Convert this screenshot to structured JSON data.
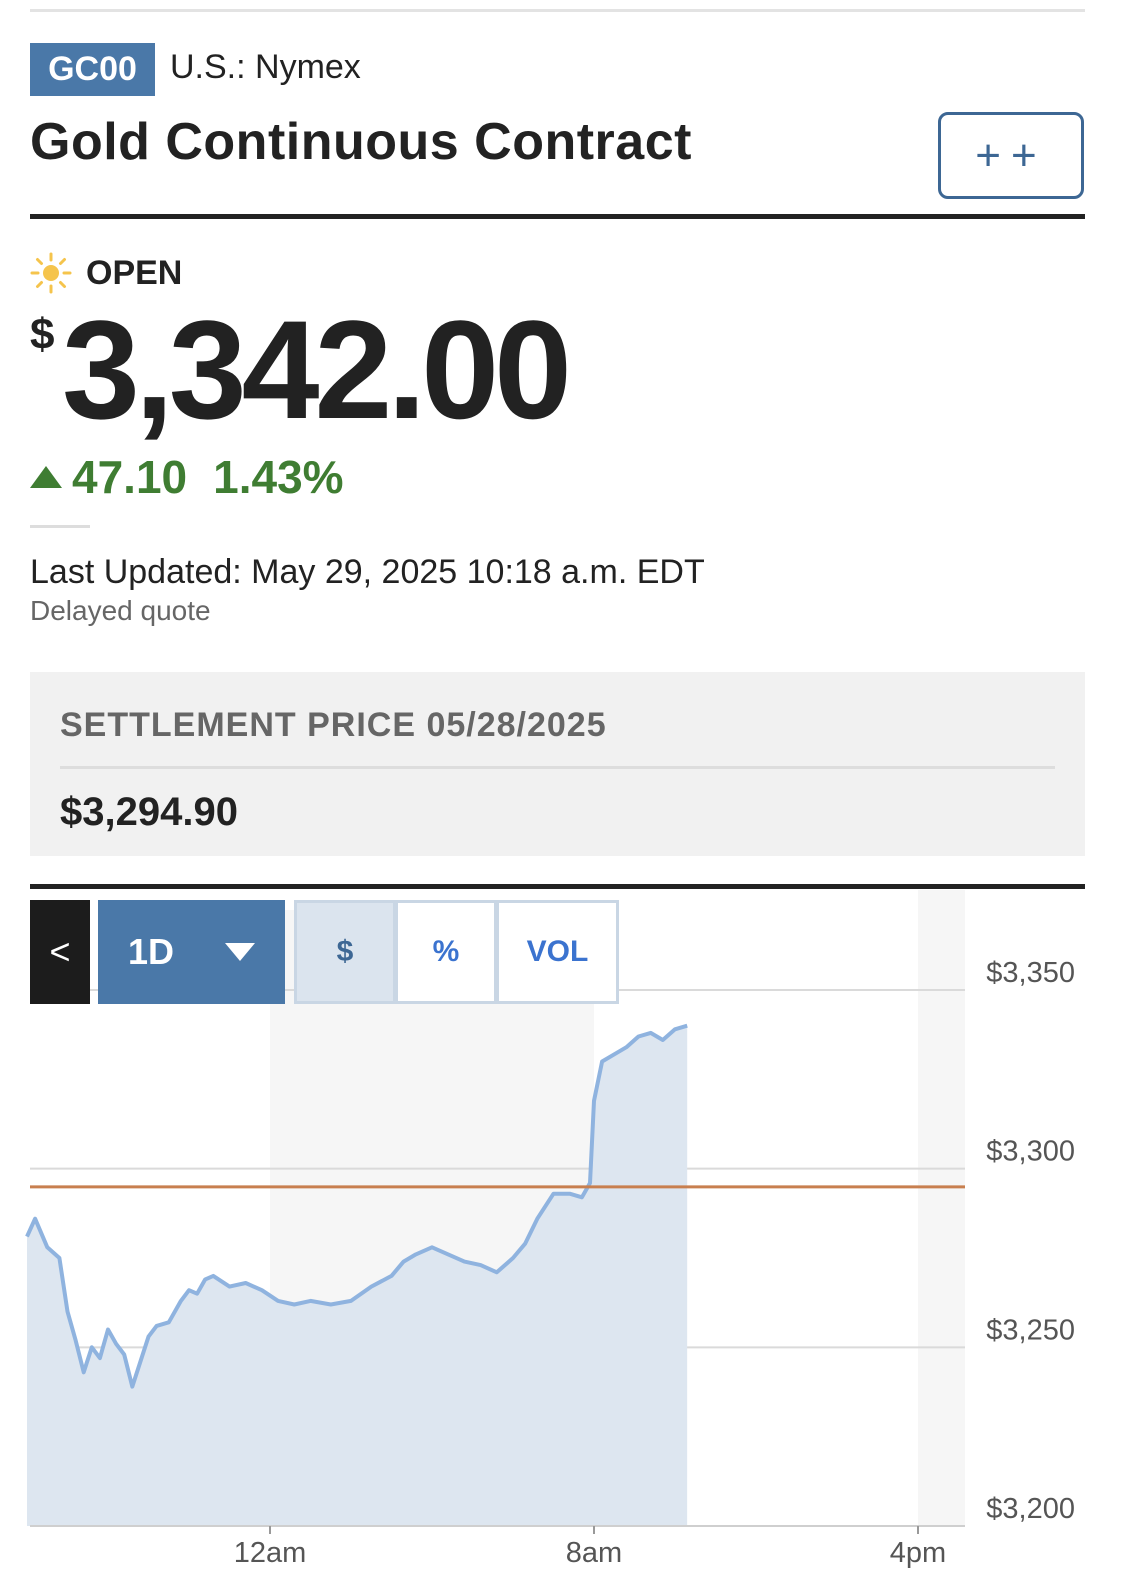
{
  "header": {
    "ticker": "GC00",
    "exchange": "U.S.: Nymex",
    "title": "Gold Continuous Contract",
    "watch_label": "++"
  },
  "quote": {
    "status": "OPEN",
    "currency_symbol": "$",
    "price": "3,342.00",
    "change": "47.10",
    "change_percent": "1.43%",
    "direction": "up",
    "last_updated": "Last Updated: May 29, 2025 10:18 a.m. EDT",
    "delayed_note": "Delayed quote"
  },
  "settlement": {
    "label": "SETTLEMENT PRICE 05/28/2025",
    "value": "$3,294.90"
  },
  "chart_controls": {
    "back_label": "<",
    "range_label": "1D",
    "modes": [
      {
        "label": "$",
        "active": true
      },
      {
        "label": "%",
        "active": false
      },
      {
        "label": "VOL",
        "active": false
      }
    ]
  },
  "colors": {
    "accent": "#4a78a8",
    "up": "#3f7d32",
    "line": "#8fb3df",
    "settlement_line": "#c87f4f"
  },
  "chart_data": {
    "type": "area",
    "title": "",
    "xlabel": "",
    "ylabel": "",
    "x_ticks": [
      "12am",
      "8am",
      "4pm"
    ],
    "y_ticks": [
      "$3,350",
      "$3,300",
      "$3,250",
      "$3,200"
    ],
    "ylim": [
      3200,
      3350
    ],
    "reference_line": {
      "value": 3294.9
    },
    "series": [
      {
        "values": [
          [
            -6.0,
            3281
          ],
          [
            -5.8,
            3286
          ],
          [
            -5.5,
            3278
          ],
          [
            -5.2,
            3275
          ],
          [
            -5.0,
            3260
          ],
          [
            -4.8,
            3252
          ],
          [
            -4.6,
            3243
          ],
          [
            -4.4,
            3250
          ],
          [
            -4.2,
            3247
          ],
          [
            -4.0,
            3255
          ],
          [
            -3.8,
            3251
          ],
          [
            -3.6,
            3248
          ],
          [
            -3.4,
            3239
          ],
          [
            -3.2,
            3246
          ],
          [
            -3.0,
            3253
          ],
          [
            -2.8,
            3256
          ],
          [
            -2.5,
            3257
          ],
          [
            -2.2,
            3263
          ],
          [
            -2.0,
            3266
          ],
          [
            -1.8,
            3265
          ],
          [
            -1.6,
            3269
          ],
          [
            -1.4,
            3270
          ],
          [
            -1.0,
            3267
          ],
          [
            -0.6,
            3268
          ],
          [
            -0.2,
            3266
          ],
          [
            0.2,
            3263
          ],
          [
            0.6,
            3262
          ],
          [
            1.0,
            3263
          ],
          [
            1.5,
            3262
          ],
          [
            2.0,
            3263
          ],
          [
            2.5,
            3267
          ],
          [
            3.0,
            3270
          ],
          [
            3.3,
            3274
          ],
          [
            3.6,
            3276
          ],
          [
            4.0,
            3278
          ],
          [
            4.4,
            3276
          ],
          [
            4.8,
            3274
          ],
          [
            5.2,
            3273
          ],
          [
            5.6,
            3271
          ],
          [
            6.0,
            3275
          ],
          [
            6.3,
            3279
          ],
          [
            6.6,
            3286
          ],
          [
            7.0,
            3293
          ],
          [
            7.4,
            3293
          ],
          [
            7.7,
            3292
          ],
          [
            7.9,
            3296
          ],
          [
            8.0,
            3319
          ],
          [
            8.2,
            3330
          ],
          [
            8.5,
            3332
          ],
          [
            8.8,
            3334
          ],
          [
            9.1,
            3337
          ],
          [
            9.4,
            3338
          ],
          [
            9.7,
            3336
          ],
          [
            10.0,
            3339
          ],
          [
            10.3,
            3340
          ]
        ]
      }
    ]
  }
}
